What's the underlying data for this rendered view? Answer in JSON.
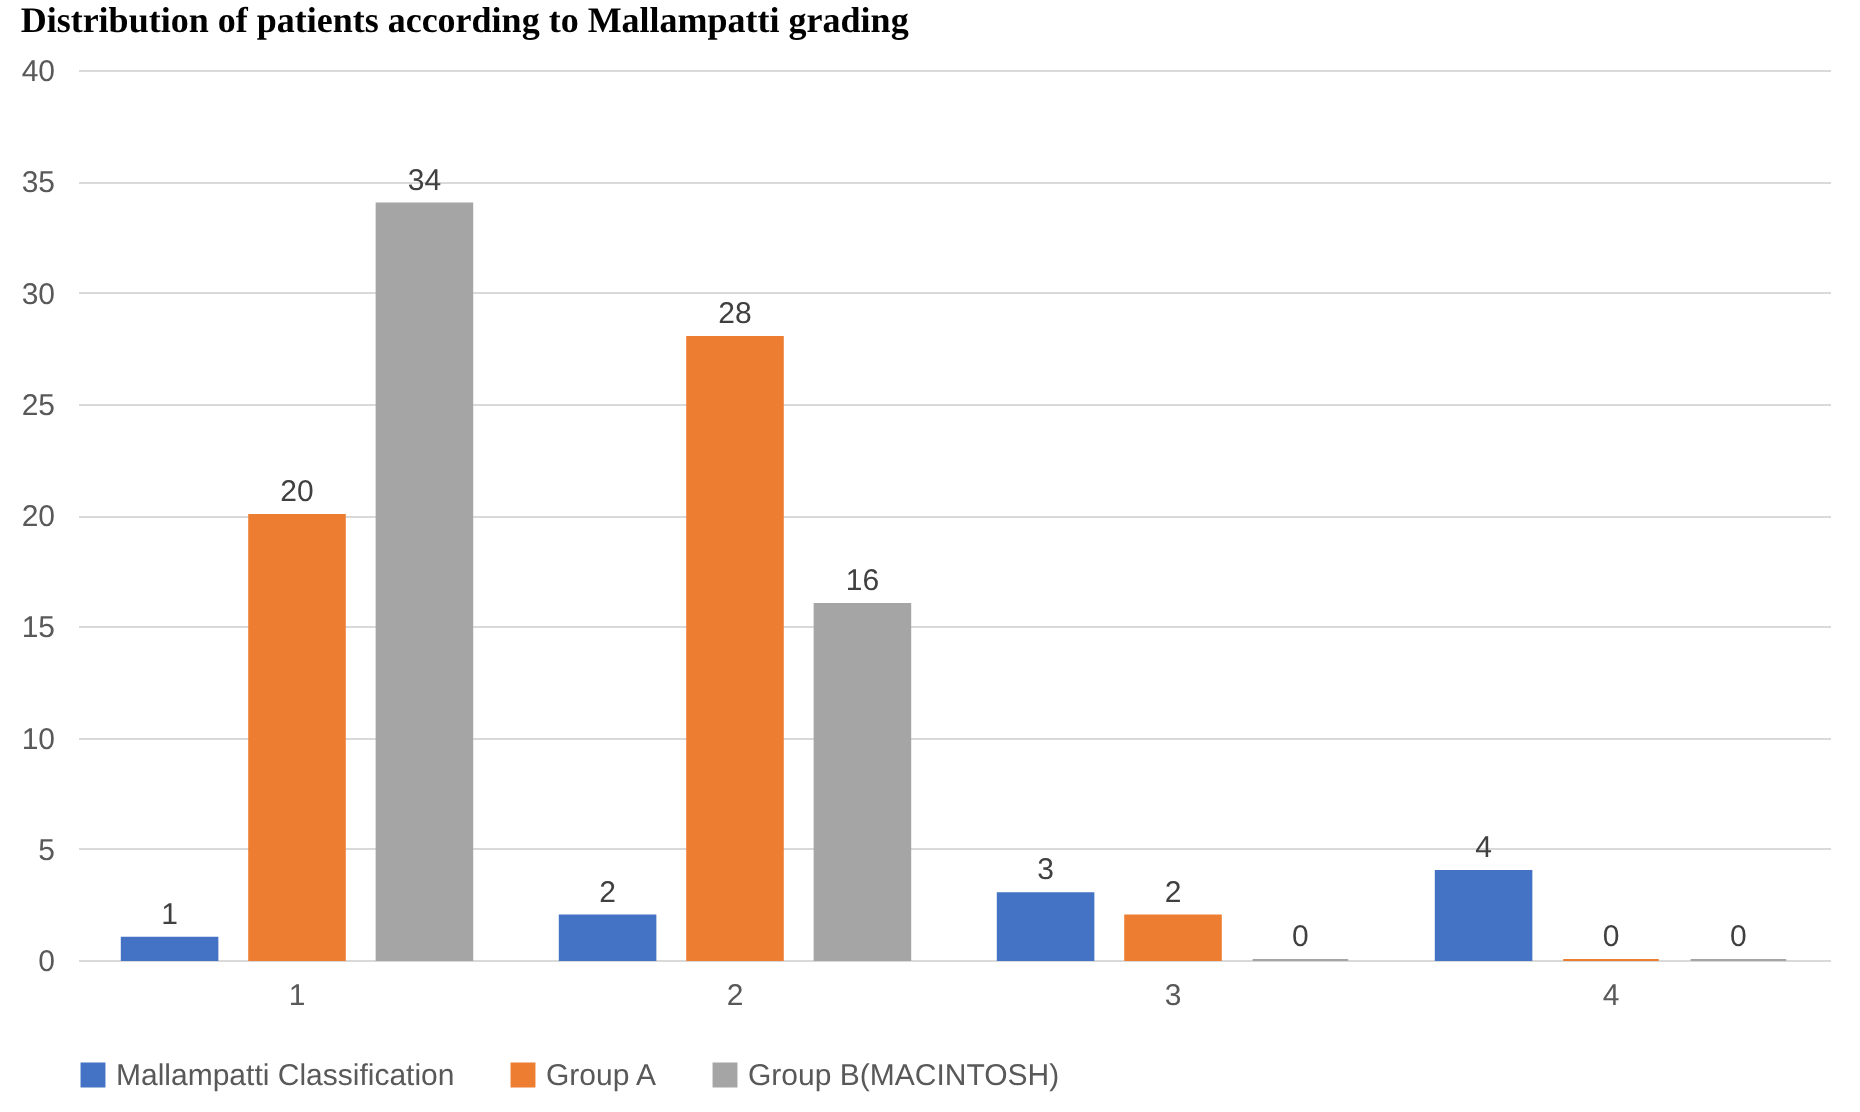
{
  "chart_data": {
    "type": "bar",
    "title": "Distribution of patients according to Mallampatti grading",
    "categories": [
      "1",
      "2",
      "3",
      "4"
    ],
    "series": [
      {
        "name": "Mallampatti Classification",
        "color": "#4472c4",
        "values": [
          1,
          2,
          3,
          4
        ]
      },
      {
        "name": "Group A",
        "color": "#ed7d31",
        "values": [
          20,
          28,
          2,
          0
        ]
      },
      {
        "name": "Group B(MACINTOSH)",
        "color": "#a5a5a5",
        "values": [
          34,
          16,
          0,
          0
        ]
      }
    ],
    "ylim": [
      0,
      40
    ],
    "yticks": [
      0,
      5,
      10,
      15,
      20,
      25,
      30,
      35,
      40
    ],
    "grid": "y",
    "legend": "bottom",
    "data_labels": true
  }
}
